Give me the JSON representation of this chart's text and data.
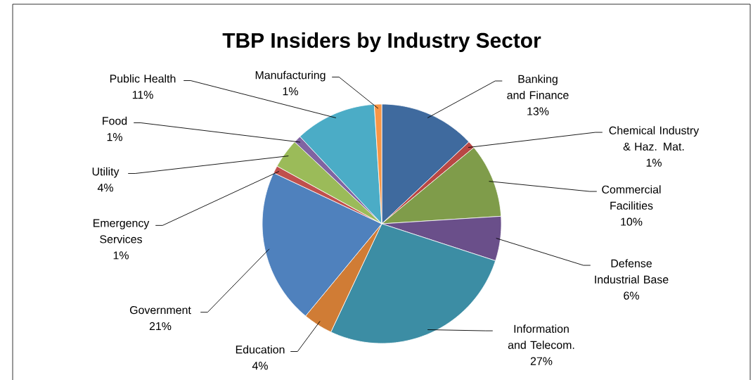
{
  "chart_data": {
    "type": "pie",
    "title": "TBP Insiders by Industry Sector",
    "categories": [
      "Banking and Finance",
      "Chemical Industry & Haz. Mat.",
      "Commercial Facilities",
      "Defense Industrial Base",
      "Information and Telecom.",
      "Education",
      "Government",
      "Emergency Services",
      "Utility",
      "Food",
      "Public Health",
      "Manufacturing"
    ],
    "values": [
      13,
      1,
      10,
      6,
      27,
      4,
      21,
      1,
      4,
      1,
      11,
      1
    ],
    "value_labels": [
      "13%",
      "1%",
      "10%",
      "6%",
      "27%",
      "4%",
      "21%",
      "1%",
      "4%",
      "1%",
      "11%",
      "1%"
    ],
    "colors": [
      "#3f6a9e",
      "#b94744",
      "#7f9c4a",
      "#6a4f8a",
      "#3c8da4",
      "#d07c35",
      "#4f81bd",
      "#c0504d",
      "#9bbb59",
      "#8064a2",
      "#4bacc6",
      "#f79646"
    ]
  }
}
